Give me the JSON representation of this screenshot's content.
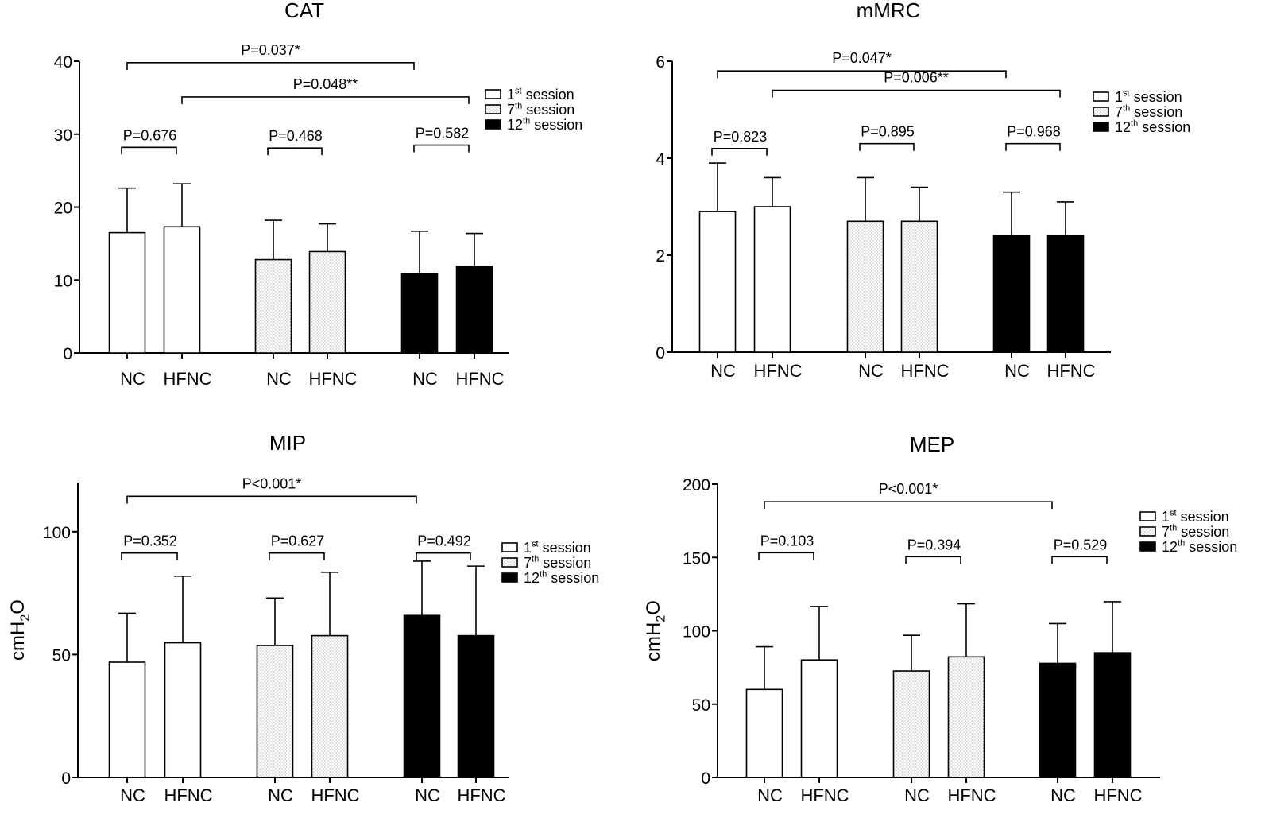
{
  "chart_data": [
    {
      "type": "bar",
      "title": "CAT",
      "ylabel": "",
      "ylim": [
        0,
        40
      ],
      "yticks": [
        0,
        10,
        20,
        30,
        40
      ],
      "categories": [
        "NC",
        "HFNC",
        "NC",
        "HFNC",
        "NC",
        "HFNC"
      ],
      "sessions": [
        0,
        0,
        1,
        1,
        2,
        2
      ],
      "values": [
        16.5,
        17.3,
        12.8,
        13.9,
        10.9,
        11.9
      ],
      "errors": [
        6.1,
        5.9,
        5.4,
        3.8,
        5.8,
        4.5
      ],
      "pairs": [
        {
          "label": "P=0.676",
          "from": 0,
          "to": 1,
          "level": 28.2
        },
        {
          "label": "P=0.468",
          "from": 2,
          "to": 3,
          "level": 28.1
        },
        {
          "label": "P=0.582",
          "from": 4,
          "to": 5,
          "level": 28.5
        }
      ],
      "brackets": [
        {
          "label": "P=0.037*",
          "from": 0,
          "to": 4,
          "level": 39.8
        },
        {
          "label": "P=0.048**",
          "from": 1,
          "to": 5,
          "level": 35.1
        }
      ],
      "legend": [
        "1st session",
        "7th session",
        "12th session"
      ]
    },
    {
      "type": "bar",
      "title": "mMRC",
      "ylabel": "",
      "ylim": [
        0,
        6
      ],
      "yticks": [
        0,
        2,
        4,
        6
      ],
      "categories": [
        "NC",
        "HFNC",
        "NC",
        "HFNC",
        "NC",
        "HFNC"
      ],
      "sessions": [
        0,
        0,
        1,
        1,
        2,
        2
      ],
      "values": [
        2.9,
        3.0,
        2.7,
        2.7,
        2.4,
        2.4
      ],
      "errors": [
        1.0,
        0.6,
        0.9,
        0.7,
        0.9,
        0.7
      ],
      "pairs": [
        {
          "label": "P=0.823",
          "from": 0,
          "to": 1,
          "level": 4.2
        },
        {
          "label": "P=0.895",
          "from": 2,
          "to": 3,
          "level": 4.3
        },
        {
          "label": "P=0.968",
          "from": 4,
          "to": 5,
          "level": 4.3
        }
      ],
      "brackets": [
        {
          "label": "P=0.047*",
          "from": 0,
          "to": 4,
          "level": 5.8
        },
        {
          "label": "P=0.006**",
          "from": 1,
          "to": 5,
          "level": 5.4
        }
      ],
      "legend": [
        "1st session",
        "7th session",
        "12th session"
      ]
    },
    {
      "type": "bar",
      "title": "MIP",
      "ylabel": "cmH2O",
      "ylim": [
        0,
        120
      ],
      "yticks": [
        0,
        50,
        100
      ],
      "categories": [
        "NC",
        "HFNC",
        "NC",
        "HFNC",
        "NC",
        "HFNC"
      ],
      "sessions": [
        0,
        0,
        1,
        1,
        2,
        2
      ],
      "values": [
        46.9,
        54.8,
        53.7,
        57.7,
        65.9,
        57.7
      ],
      "errors": [
        19.9,
        27.1,
        19.3,
        25.8,
        22.1,
        28.3
      ],
      "pairs": [
        {
          "label": "P=0.352",
          "from": 0,
          "to": 1,
          "level": 91.3
        },
        {
          "label": "P=0.627",
          "from": 2,
          "to": 3,
          "level": 91.3
        },
        {
          "label": "P=0.492",
          "from": 4,
          "to": 5,
          "level": 91.3
        }
      ],
      "brackets": [
        {
          "label": "P<0.001*",
          "from": 0,
          "to": 4,
          "level": 114.4
        }
      ],
      "legend": [
        "1st session",
        "7th session",
        "12th session"
      ]
    },
    {
      "type": "bar",
      "title": "MEP",
      "ylabel": "cmH2O",
      "ylim": [
        0,
        200
      ],
      "yticks": [
        0,
        50,
        100,
        150,
        200
      ],
      "categories": [
        "NC",
        "HFNC",
        "NC",
        "HFNC",
        "NC",
        "HFNC"
      ],
      "sessions": [
        0,
        0,
        1,
        1,
        2,
        2
      ],
      "values": [
        60.0,
        80.1,
        72.6,
        82.2,
        77.8,
        85.0
      ],
      "errors": [
        29.1,
        36.5,
        24.3,
        36.2,
        27.1,
        34.8
      ],
      "pairs": [
        {
          "label": "P=0.103",
          "from": 0,
          "to": 1,
          "level": 153.2
        },
        {
          "label": "P=0.394",
          "from": 2,
          "to": 3,
          "level": 150.5
        },
        {
          "label": "P=0.529",
          "from": 4,
          "to": 5,
          "level": 150.5
        }
      ],
      "brackets": [
        {
          "label": "P<0.001*",
          "from": 0,
          "to": 4,
          "level": 188.0
        }
      ],
      "legend": [
        "1st session",
        "7th session",
        "12th session"
      ]
    }
  ]
}
